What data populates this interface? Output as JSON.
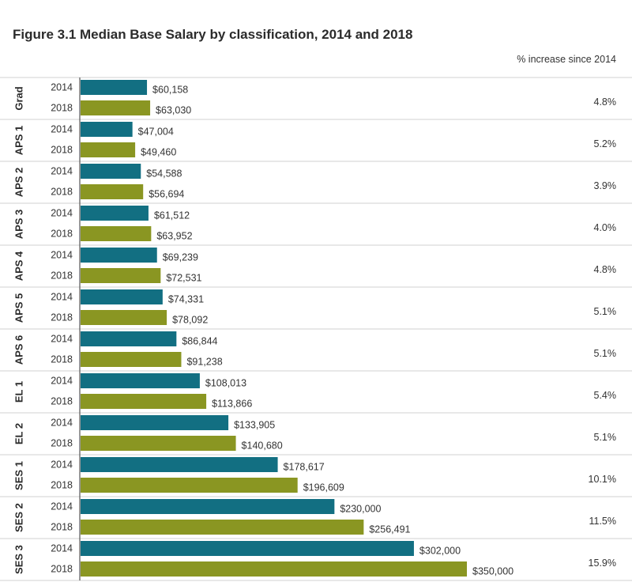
{
  "title": "Figure 3.1 Median Base Salary by classification, 2014 and 2018",
  "pct_header": "% increase since 2014",
  "colors": {
    "y2014": "#126f82",
    "y2018": "#8a9622",
    "separator": "#d0d0d0",
    "axis": "#555555",
    "text": "#333333"
  },
  "chart_data": {
    "type": "bar",
    "orientation": "horizontal",
    "title": "Figure 3.1 Median Base Salary by classification, 2014 and 2018",
    "xlabel": "",
    "ylabel": "",
    "xlim": [
      0,
      350000
    ],
    "grid": false,
    "legend": "none",
    "series_names": [
      "2014",
      "2018"
    ],
    "categories": [
      "Grad",
      "APS 1",
      "APS 2",
      "APS 3",
      "APS 4",
      "APS 5",
      "APS 6",
      "EL 1",
      "EL 2",
      "SES 1",
      "SES 2",
      "SES 3"
    ],
    "series": [
      {
        "name": "2014",
        "values": [
          60158,
          47004,
          54588,
          61512,
          69239,
          74331,
          86844,
          108013,
          133905,
          178617,
          230000,
          302000
        ]
      },
      {
        "name": "2018",
        "values": [
          63030,
          49460,
          56694,
          63952,
          72531,
          78092,
          91238,
          113866,
          140680,
          196609,
          256491,
          350000
        ]
      }
    ],
    "value_labels": [
      [
        "$60,158",
        "$47,004",
        "$54,588",
        "$61,512",
        "$69,239",
        "$74,331",
        "$86,844",
        "$108,013",
        "$133,905",
        "$178,617",
        "$230,000",
        "$302,000"
      ],
      [
        "$63,030",
        "$49,460",
        "$56,694",
        "$63,952",
        "$72,531",
        "$78,092",
        "$91,238",
        "$113,866",
        "$140,680",
        "$196,609",
        "$256,491",
        "$350,000"
      ]
    ],
    "pct_increase": [
      "4.8%",
      "5.2%",
      "3.9%",
      "4.0%",
      "4.8%",
      "5.1%",
      "5.1%",
      "5.4%",
      "5.1%",
      "10.1%",
      "11.5%",
      "15.9%"
    ]
  }
}
